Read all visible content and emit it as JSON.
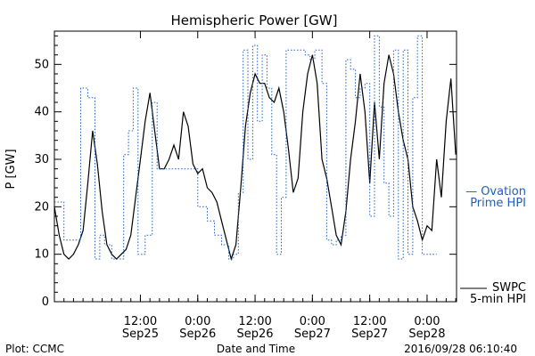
{
  "chart_data": {
    "type": "line",
    "title": "Hemispheric Power [GW]",
    "ylabel": "P [GW]",
    "xlabel": "Date and Time",
    "ylim": [
      0,
      57
    ],
    "xlim": [
      "2016-09-24T18:00",
      "2016-09-28T06:10"
    ],
    "yticks": [
      0,
      10,
      20,
      30,
      40,
      50
    ],
    "xticks": [
      {
        "time": "2016-09-25T12:00",
        "label_top": "12:00",
        "label_bottom": "Sep25"
      },
      {
        "time": "2016-09-26T00:00",
        "label_top": "0:00",
        "label_bottom": "Sep26"
      },
      {
        "time": "2016-09-26T12:00",
        "label_top": "12:00",
        "label_bottom": "Sep26"
      },
      {
        "time": "2016-09-27T00:00",
        "label_top": "0:00",
        "label_bottom": "Sep27"
      },
      {
        "time": "2016-09-27T12:00",
        "label_top": "12:00",
        "label_bottom": "Sep27"
      },
      {
        "time": "2016-09-28T00:00",
        "label_top": "0:00",
        "label_bottom": "Sep28"
      }
    ],
    "grid": false,
    "legend_position": "right",
    "series": [
      {
        "name": "SWPC 5-min HPI",
        "legend_lines": [
          "SWPC",
          "5-min HPI"
        ],
        "color": "#000000",
        "style": "solid",
        "x": [
          "2016-09-24T18:00",
          "2016-09-24T19:00",
          "2016-09-24T20:00",
          "2016-09-24T21:00",
          "2016-09-24T22:00",
          "2016-09-24T23:00",
          "2016-09-25T00:00",
          "2016-09-25T01:00",
          "2016-09-25T02:00",
          "2016-09-25T03:00",
          "2016-09-25T04:00",
          "2016-09-25T05:00",
          "2016-09-25T06:00",
          "2016-09-25T07:00",
          "2016-09-25T08:00",
          "2016-09-25T09:00",
          "2016-09-25T10:00",
          "2016-09-25T11:00",
          "2016-09-25T12:00",
          "2016-09-25T13:00",
          "2016-09-25T14:00",
          "2016-09-25T15:00",
          "2016-09-25T16:00",
          "2016-09-25T17:00",
          "2016-09-25T18:00",
          "2016-09-25T19:00",
          "2016-09-25T20:00",
          "2016-09-25T21:00",
          "2016-09-25T22:00",
          "2016-09-25T23:00",
          "2016-09-26T00:00",
          "2016-09-26T01:00",
          "2016-09-26T02:00",
          "2016-09-26T03:00",
          "2016-09-26T04:00",
          "2016-09-26T05:00",
          "2016-09-26T06:00",
          "2016-09-26T07:00",
          "2016-09-26T08:00",
          "2016-09-26T09:00",
          "2016-09-26T10:00",
          "2016-09-26T11:00",
          "2016-09-26T12:00",
          "2016-09-26T13:00",
          "2016-09-26T14:00",
          "2016-09-26T15:00",
          "2016-09-26T16:00",
          "2016-09-26T17:00",
          "2016-09-26T18:00",
          "2016-09-26T19:00",
          "2016-09-26T20:00",
          "2016-09-26T21:00",
          "2016-09-26T22:00",
          "2016-09-26T23:00",
          "2016-09-27T00:00",
          "2016-09-27T01:00",
          "2016-09-27T02:00",
          "2016-09-27T03:00",
          "2016-09-27T04:00",
          "2016-09-27T05:00",
          "2016-09-27T06:00",
          "2016-09-27T07:00",
          "2016-09-27T08:00",
          "2016-09-27T09:00",
          "2016-09-27T10:00",
          "2016-09-27T11:00",
          "2016-09-27T12:00",
          "2016-09-27T13:00",
          "2016-09-27T14:00",
          "2016-09-27T15:00",
          "2016-09-27T16:00",
          "2016-09-27T17:00",
          "2016-09-27T18:00",
          "2016-09-27T19:00",
          "2016-09-27T20:00",
          "2016-09-27T21:00",
          "2016-09-27T22:00",
          "2016-09-27T23:00",
          "2016-09-28T00:00",
          "2016-09-28T01:00",
          "2016-09-28T02:00",
          "2016-09-28T03:00",
          "2016-09-28T04:00",
          "2016-09-28T05:00",
          "2016-09-28T06:00"
        ],
        "y": [
          20,
          14,
          10,
          9,
          10,
          12,
          15,
          25,
          36,
          29,
          19,
          12,
          10,
          9,
          10,
          11,
          14,
          22,
          30,
          38,
          44,
          36,
          28,
          28,
          30,
          33,
          30,
          40,
          37,
          29,
          27,
          28,
          24,
          23,
          21,
          17,
          13,
          9,
          12,
          24,
          37,
          44,
          48,
          46,
          46,
          43,
          42,
          45,
          40,
          32,
          23,
          26,
          40,
          48,
          52,
          46,
          30,
          26,
          20,
          14,
          12,
          19,
          30,
          38,
          48,
          40,
          25,
          42,
          30,
          46,
          52,
          48,
          40,
          34,
          30,
          20,
          17,
          13,
          16,
          15,
          30,
          22,
          38,
          47,
          31
        ]
      },
      {
        "name": "Ovation Prime HPI",
        "legend_lines": [
          "— Ovation",
          "Prime HPI"
        ],
        "color": "#1f5fbf",
        "style": "dotted-step",
        "x": [
          "2016-09-24T18:00",
          "2016-09-24T20:00",
          "2016-09-24T22:00",
          "2016-09-24T23:30",
          "2016-09-25T01:00",
          "2016-09-25T02:30",
          "2016-09-25T03:30",
          "2016-09-25T04:30",
          "2016-09-25T06:00",
          "2016-09-25T07:30",
          "2016-09-25T08:30",
          "2016-09-25T09:30",
          "2016-09-25T10:30",
          "2016-09-25T11:30",
          "2016-09-25T13:00",
          "2016-09-25T14:30",
          "2016-09-25T15:30",
          "2016-09-25T17:00",
          "2016-09-25T18:30",
          "2016-09-25T20:00",
          "2016-09-25T22:00",
          "2016-09-26T00:00",
          "2016-09-26T02:00",
          "2016-09-26T03:30",
          "2016-09-26T05:00",
          "2016-09-26T06:30",
          "2016-09-26T07:30",
          "2016-09-26T08:30",
          "2016-09-26T09:30",
          "2016-09-26T10:30",
          "2016-09-26T11:30",
          "2016-09-26T12:30",
          "2016-09-26T13:30",
          "2016-09-26T14:30",
          "2016-09-26T15:30",
          "2016-09-26T16:30",
          "2016-09-26T17:30",
          "2016-09-26T18:30",
          "2016-09-26T19:30",
          "2016-09-26T20:30",
          "2016-09-26T21:30",
          "2016-09-26T22:30",
          "2016-09-26T23:30",
          "2016-09-27T00:30",
          "2016-09-27T02:00",
          "2016-09-27T03:00",
          "2016-09-27T04:00",
          "2016-09-27T05:00",
          "2016-09-27T06:00",
          "2016-09-27T07:00",
          "2016-09-27T08:00",
          "2016-09-27T09:00",
          "2016-09-27T10:00",
          "2016-09-27T11:00",
          "2016-09-27T12:00",
          "2016-09-27T13:00",
          "2016-09-27T14:00",
          "2016-09-27T15:00",
          "2016-09-27T16:00",
          "2016-09-27T17:00",
          "2016-09-27T18:00",
          "2016-09-27T19:00",
          "2016-09-27T20:00",
          "2016-09-27T21:00",
          "2016-09-27T22:00",
          "2016-09-27T23:00",
          "2016-09-28T00:00",
          "2016-09-28T01:00",
          "2016-09-28T02:00"
        ],
        "y": [
          21,
          13,
          13,
          45,
          43,
          9,
          14,
          12,
          9,
          9,
          31,
          36,
          45,
          10,
          14,
          42,
          28,
          28,
          28,
          28,
          28,
          20,
          17,
          14,
          12,
          9,
          10,
          23,
          53,
          30,
          54,
          38,
          52,
          45,
          31,
          10,
          22,
          53,
          53,
          53,
          53,
          52,
          51,
          53,
          46,
          13,
          12,
          13,
          14,
          51,
          49,
          43,
          45,
          46,
          18,
          56,
          41,
          25,
          18,
          53,
          9,
          53,
          10,
          43,
          56,
          10,
          10,
          10,
          10
        ]
      }
    ]
  },
  "footer": {
    "left": "Plot: CCMC",
    "right": "2016/09/28 06:10:40"
  }
}
